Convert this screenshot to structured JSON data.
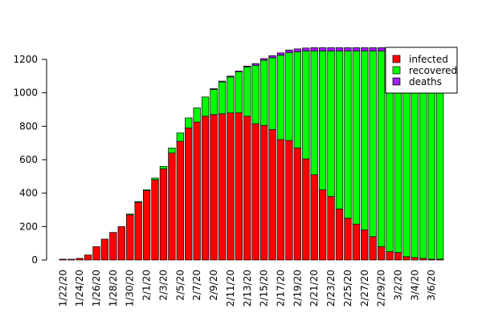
{
  "chart_data": {
    "type": "bar",
    "stacked": true,
    "title": "",
    "xlabel": "",
    "ylabel": "",
    "ylim": [
      0,
      1300
    ],
    "yticks": [
      0,
      200,
      400,
      600,
      800,
      1000,
      1200
    ],
    "grid": false,
    "legend_position": "top-right",
    "x": [
      "1/22/20",
      "1/23/20",
      "1/24/20",
      "1/25/20",
      "1/26/20",
      "1/27/20",
      "1/28/20",
      "1/29/20",
      "1/30/20",
      "1/31/20",
      "2/1/20",
      "2/2/20",
      "2/3/20",
      "2/4/20",
      "2/5/20",
      "2/6/20",
      "2/7/20",
      "2/8/20",
      "2/9/20",
      "2/10/20",
      "2/11/20",
      "2/12/20",
      "2/13/20",
      "2/14/20",
      "2/15/20",
      "2/16/20",
      "2/17/20",
      "2/18/20",
      "2/19/20",
      "2/20/20",
      "2/21/20",
      "2/22/20",
      "2/23/20",
      "2/24/20",
      "2/25/20",
      "2/26/20",
      "2/27/20",
      "2/28/20",
      "2/29/20",
      "3/1/20",
      "3/2/20",
      "3/3/20",
      "3/4/20",
      "3/5/20",
      "3/6/20",
      "3/7/20"
    ],
    "x_tick_labels": [
      "1/22/20",
      "1/24/20",
      "1/26/20",
      "1/28/20",
      "1/30/20",
      "2/1/20",
      "2/3/20",
      "2/5/20",
      "2/7/20",
      "2/9/20",
      "2/11/20",
      "2/13/20",
      "2/15/20",
      "2/17/20",
      "2/19/20",
      "2/21/20",
      "2/23/20",
      "2/25/20",
      "2/27/20",
      "2/29/20",
      "3/2/20",
      "3/4/20",
      "3/6/20"
    ],
    "series": [
      {
        "name": "infected",
        "color": "#ff0000",
        "values": [
          5,
          5,
          10,
          30,
          80,
          125,
          165,
          200,
          270,
          345,
          415,
          480,
          545,
          640,
          710,
          790,
          825,
          860,
          870,
          875,
          880,
          880,
          860,
          815,
          805,
          780,
          720,
          715,
          670,
          605,
          510,
          420,
          380,
          305,
          250,
          215,
          180,
          140,
          80,
          50,
          45,
          20,
          15,
          10,
          5,
          5
        ]
      },
      {
        "name": "recovered",
        "color": "#00ff00",
        "values": [
          0,
          0,
          0,
          0,
          0,
          0,
          0,
          0,
          5,
          5,
          5,
          10,
          15,
          30,
          50,
          60,
          85,
          115,
          150,
          190,
          215,
          245,
          295,
          350,
          390,
          430,
          505,
          525,
          575,
          645,
          740,
          830,
          870,
          945,
          1000,
          1035,
          1070,
          1110,
          1170,
          1200,
          1205,
          1230,
          1235,
          1240,
          1245,
          1245
        ]
      },
      {
        "name": "deaths",
        "color": "#a020f0",
        "values": [
          0,
          0,
          0,
          0,
          0,
          0,
          0,
          0,
          0,
          0,
          0,
          0,
          0,
          0,
          0,
          0,
          0,
          0,
          5,
          5,
          5,
          5,
          5,
          10,
          10,
          12,
          14,
          16,
          18,
          18,
          20,
          20,
          20,
          20,
          20,
          20,
          20,
          20,
          20,
          20,
          20,
          20,
          20,
          20,
          20,
          20
        ]
      }
    ]
  }
}
